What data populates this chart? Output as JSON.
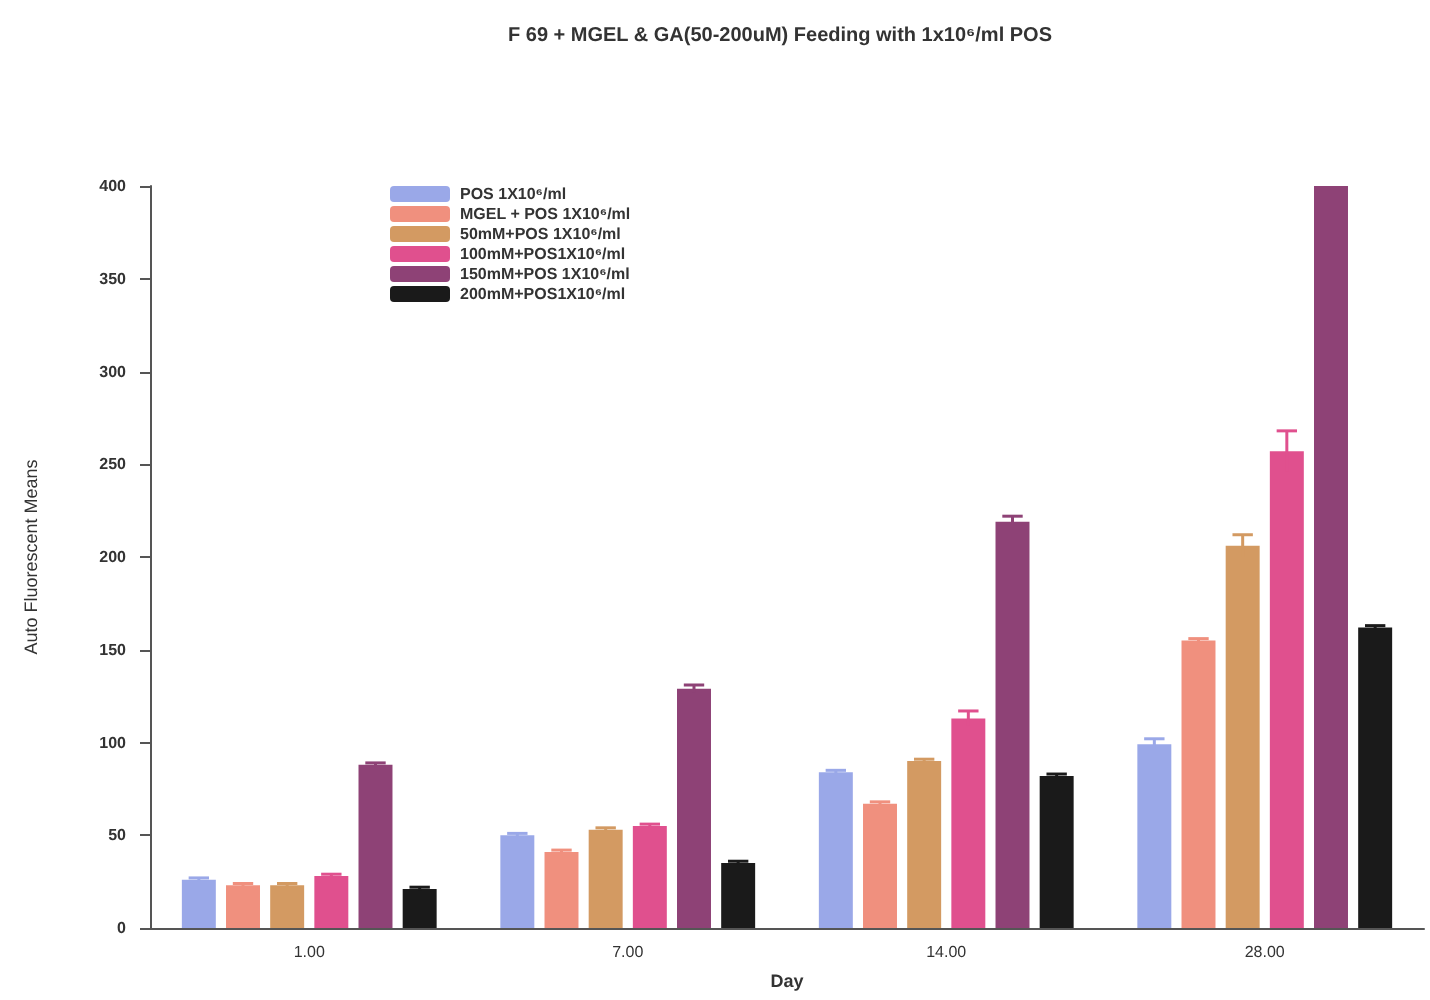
{
  "chart_data": {
    "type": "bar",
    "title": "F 69 + MGEL & GA(50-200uM) Feeding with 1x10⁶/ml POS",
    "xlabel": "Day",
    "ylabel": "Auto Fluorescent Means",
    "categories": [
      "1.00",
      "7.00",
      "14.00",
      "28.00"
    ],
    "series": [
      {
        "name": "POS 1X10⁶/ml",
        "color": "#9aa8e8",
        "values": [
          26,
          50,
          84,
          99
        ],
        "errors": [
          1,
          1,
          1,
          3
        ]
      },
      {
        "name": "MGEL + POS 1X10⁶/ml",
        "color": "#f0907e",
        "values": [
          23,
          41,
          67,
          155
        ],
        "errors": [
          1,
          1,
          1,
          1
        ]
      },
      {
        "name": "50mM+POS 1X10⁶/ml",
        "color": "#d39a62",
        "values": [
          23,
          53,
          90,
          206
        ],
        "errors": [
          1,
          1,
          1,
          6
        ]
      },
      {
        "name": "100mM+POS1X10⁶/ml",
        "color": "#e0508e",
        "values": [
          28,
          55,
          113,
          257
        ],
        "errors": [
          1,
          1,
          4,
          11
        ]
      },
      {
        "name": "150mM+POS 1X10⁶/ml",
        "color": "#8e4276",
        "values": [
          88,
          129,
          219,
          400
        ],
        "errors": [
          1,
          2,
          3,
          null
        ]
      },
      {
        "name": "200mM+POS1X10⁶/ml",
        "color": "#1a1a1a",
        "values": [
          21,
          35,
          82,
          162
        ],
        "errors": [
          1,
          1,
          1,
          1
        ]
      }
    ],
    "ylim": [
      0,
      400
    ],
    "yticks": [
      0,
      50,
      100,
      150,
      200,
      250,
      300,
      350,
      400
    ],
    "grid": false,
    "legend": "top"
  }
}
